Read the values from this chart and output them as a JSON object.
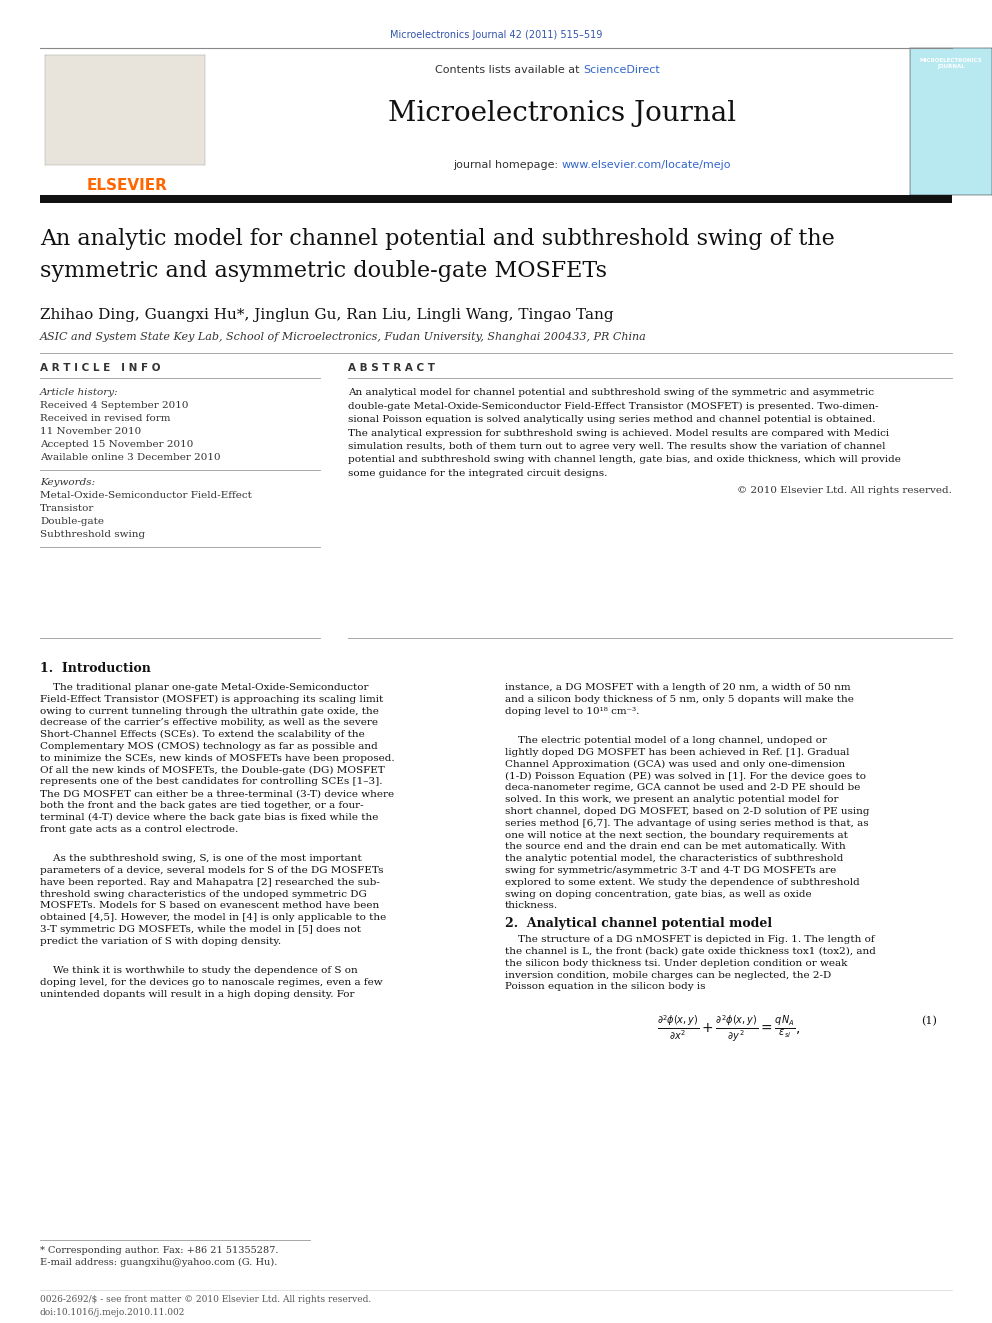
{
  "page_width": 9.92,
  "page_height": 13.23,
  "dpi": 100,
  "bg": "#ffffff",
  "journal_citation": "Microelectronics Journal 42 (2011) 515–519",
  "journal_citation_color": "#3355aa",
  "journal_name": "Microelectronics Journal",
  "sciencedirect_text": "ScienceDirect",
  "sciencedirect_color": "#3366cc",
  "journal_url": "www.elsevier.com/locate/mejo",
  "journal_url_color": "#3366cc",
  "header_bg_color": "#e5e5e5",
  "thick_bar_color": "#111111",
  "thin_line_color": "#aaaaaa",
  "paper_title_line1": "An analytic model for channel potential and subthreshold swing of the",
  "paper_title_line2": "symmetric and asymmetric double-gate MOSFETs",
  "authors": "Zhihao Ding, Guangxi Hu*, Jinglun Gu, Ran Liu, Lingli Wang, Tingao Tang",
  "affiliation": "ASIC and System State Key Lab, School of Microelectronics, Fudan University, Shanghai 200433, PR China",
  "article_info_label": "A R T I C L E   I N F O",
  "abstract_label": "A B S T R A C T",
  "article_history_label": "Article history:",
  "received1": "Received 4 September 2010",
  "received2": "Received in revised form",
  "received2b": "11 November 2010",
  "accepted": "Accepted 15 November 2010",
  "available": "Available online 3 December 2010",
  "keywords_label": "Keywords:",
  "keyword1": "Metal-Oxide-Semiconductor Field-Effect",
  "keyword2": "Transistor",
  "keyword3": "Double-gate",
  "keyword4": "Subthreshold swing",
  "abstract_lines": [
    "An analytical model for channel potential and subthreshold swing of the symmetric and asymmetric",
    "double-gate Metal-Oxide-Semiconductor Field-Effect Transistor (MOSFET) is presented. Two-dimen-",
    "sional Poisson equation is solved analytically using series method and channel potential is obtained.",
    "The analytical expression for subthreshold swing is achieved. Model results are compared with Medici",
    "simulation results, both of them turn out to agree very well. The results show the variation of channel",
    "potential and subthreshold swing with channel length, gate bias, and oxide thickness, which will provide",
    "some guidance for the integrated circuit designs."
  ],
  "copyright_text": "© 2010 Elsevier Ltd. All rights reserved.",
  "section1_title": "1.  Introduction",
  "left_col_lines": [
    "    The traditional planar one-gate Metal-Oxide-Semiconductor",
    "Field-Effect Transistor (MOSFET) is approaching its scaling limit",
    "owing to current tunneling through the ultrathin gate oxide, the",
    "decrease of the carrier’s effective mobility, as well as the severe",
    "Short-Channel Effects (SCEs). To extend the scalability of the",
    "Complementary MOS (CMOS) technology as far as possible and",
    "to minimize the SCEs, new kinds of MOSFETs have been proposed.",
    "Of all the new kinds of MOSFETs, the Double-gate (DG) MOSFET",
    "represents one of the best candidates for controlling SCEs [1–3].",
    "The DG MOSFET can either be a three-terminal (3-T) device where",
    "both the front and the back gates are tied together, or a four-",
    "terminal (4-T) device where the back gate bias is fixed while the",
    "front gate acts as a control electrode.",
    "",
    "    As the subthreshold swing, S, is one of the most important",
    "parameters of a device, several models for S of the DG MOSFETs",
    "have been reported. Ray and Mahapatra [2] researched the sub-",
    "threshold swing characteristics of the undoped symmetric DG",
    "MOSFETs. Models for S based on evanescent method have been",
    "obtained [4,5]. However, the model in [4] is only applicable to the",
    "3-T symmetric DG MOSFETs, while the model in [5] does not",
    "predict the variation of S with doping density.",
    "",
    "    We think it is worthwhile to study the dependence of S on",
    "doping level, for the devices go to nanoscale regimes, even a few",
    "unintended dopants will result in a high doping density. For"
  ],
  "right_col_lines_intro": [
    "instance, a DG MOSFET with a length of 20 nm, a width of 50 nm",
    "and a silicon body thickness of 5 nm, only 5 dopants will make the",
    "doping level to 10¹⁸ cm⁻³.",
    "",
    "    The electric potential model of a long channel, undoped or",
    "lightly doped DG MOSFET has been achieved in Ref. [1]. Gradual",
    "Channel Approximation (GCA) was used and only one-dimension",
    "(1-D) Poisson Equation (PE) was solved in [1]. For the device goes to",
    "deca-nanometer regime, GCA cannot be used and 2-D PE should be",
    "solved. In this work, we present an analytic potential model for",
    "short channel, doped DG MOSFET, based on 2-D solution of PE using",
    "series method [6,7]. The advantage of using series method is that, as",
    "one will notice at the next section, the boundary requirements at",
    "the source end and the drain end can be met automatically. With",
    "the analytic potential model, the characteristics of subthreshold",
    "swing for symmetric/asymmetric 3-T and 4-T DG MOSFETs are",
    "explored to some extent. We study the dependence of subthreshold",
    "swing on doping concentration, gate bias, as well as oxide",
    "thickness."
  ],
  "section2_title": "2.  Analytical channel potential model",
  "section2_lines": [
    "    The structure of a DG nMOSFET is depicted in Fig. 1. The length of",
    "the channel is L, the front (back) gate oxide thickness tox1 (tox2), and",
    "the silicon body thickness tsi. Under depletion condition or weak",
    "inversion condition, mobile charges can be neglected, the 2-D",
    "Poisson equation in the silicon body is"
  ],
  "equation1_number": "(1)",
  "footnote_star": "* Corresponding author. Fax: +86 21 51355287.",
  "footnote_email": "E-mail address: guangxihu@yahoo.com (G. Hu).",
  "footer_issn": "0026-2692/$ - see front matter © 2010 Elsevier Ltd. All rights reserved.",
  "footer_doi": "doi:10.1016/j.mejo.2010.11.002",
  "elsevier_color": "#FF6600"
}
